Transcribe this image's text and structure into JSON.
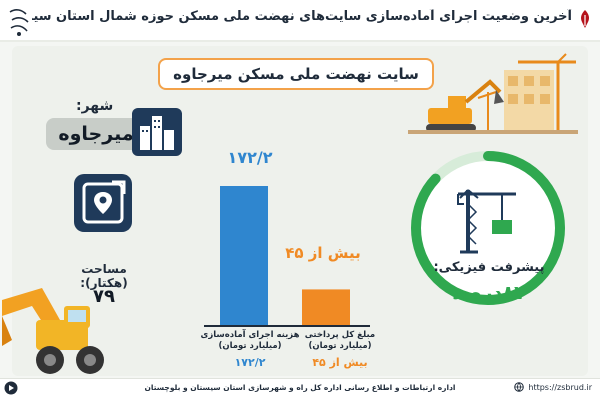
{
  "header": {
    "title": "آخرین وضعیت اجرای آماده‌سازی سایت‌های نهضت ملی مسکن حوزه شمال استان سیستان‌وبلوچستان"
  },
  "site": {
    "title": "سایت نهضت ملی مسکن میرجاوه"
  },
  "city": {
    "label": "شهر:",
    "name": "میرجاوه",
    "icon": "city-buildings-icon"
  },
  "area": {
    "label": "مساحت (هکتار):",
    "value": "۷۹",
    "icon": "map-pin-expand-icon"
  },
  "progress": {
    "label": "پیشرفت فیزیکی:",
    "value_text": "۸۷درصد",
    "percent": 87,
    "icon": "tower-crane-icon"
  },
  "chart_data": {
    "type": "bar",
    "categories": [
      "هزینه اجرای آماده‌سازی (میلیارد تومان)",
      "مبلغ کل پرداختی (میلیارد تومان)"
    ],
    "values": [
      172.2,
      45
    ],
    "value_labels": [
      "۱۷۲/۲",
      "بیش از ۴۵"
    ],
    "colors": [
      "#2f86cf",
      "#f08a24"
    ],
    "category_lines": [
      [
        "هزینه اجرای آماده‌سازی",
        "(میلیارد تومان)"
      ],
      [
        "مبلغ کل پرداختی",
        "(میلیارد تومان)"
      ]
    ],
    "category_values": [
      "۱۷۲/۲",
      "بیش از ۴۵"
    ]
  },
  "footer": {
    "text": "اداره ارتباطات و اطلاع رسانی اداره کل راه و شهرسازی استان سیستان و بلوچستان",
    "url": "https://zsbrud.ir"
  },
  "colors": {
    "accent_blue": "#2f86cf",
    "accent_orange": "#f08a24",
    "accent_green": "#2fa84f",
    "dark_navy": "#1f2b3a"
  }
}
